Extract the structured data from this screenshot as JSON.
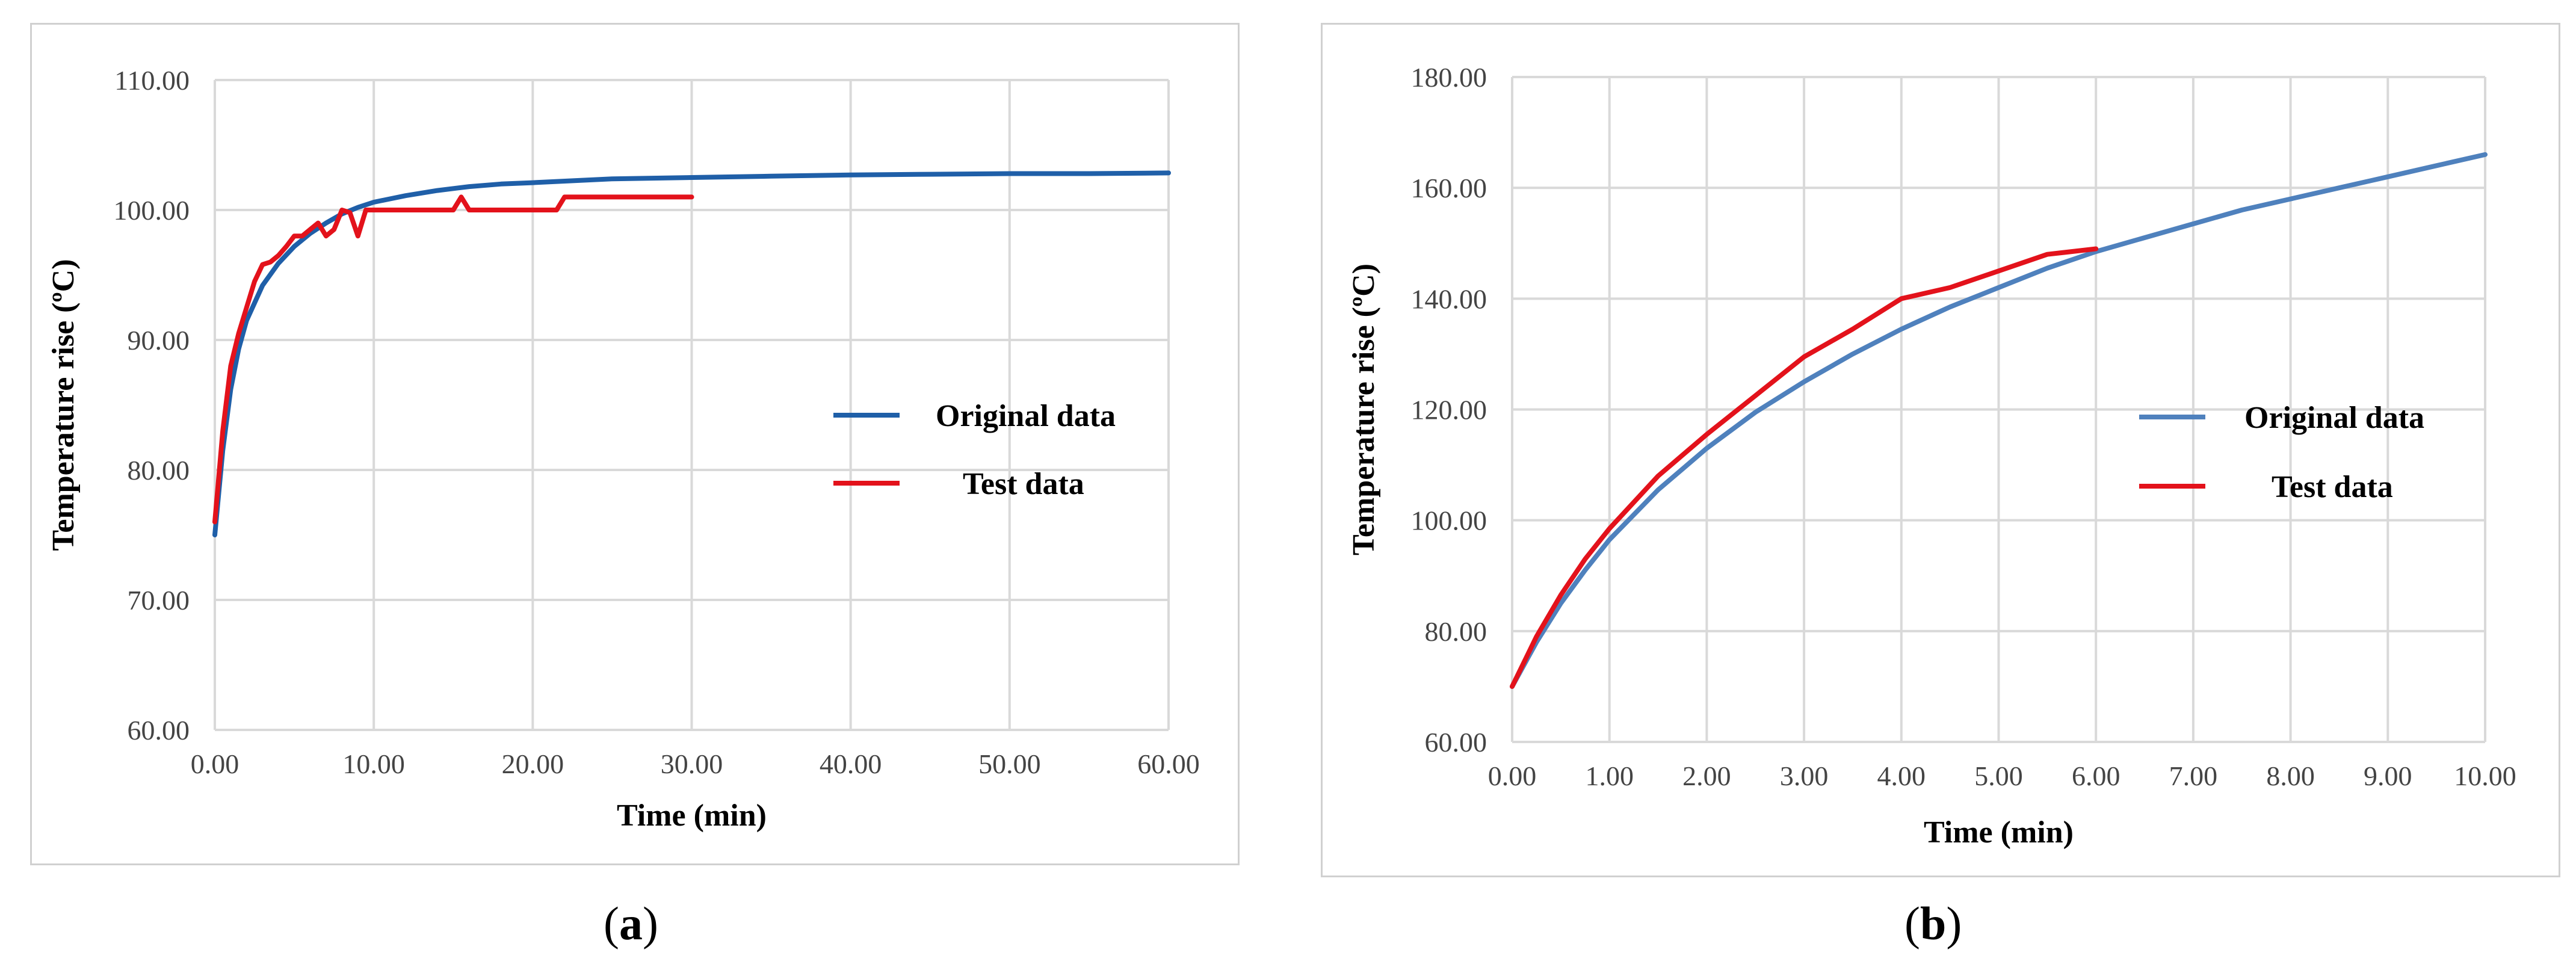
{
  "captions": {
    "a": "a",
    "b": "b"
  },
  "chart_data": [
    {
      "id": "a",
      "type": "line",
      "xlabel": "Time (min)",
      "ylabel": "Temperature rise (ºC)",
      "xlim": [
        0,
        60
      ],
      "ylim": [
        60,
        110
      ],
      "xticks": [
        0,
        10,
        20,
        30,
        40,
        50,
        60
      ],
      "yticks": [
        60,
        70,
        80,
        90,
        100,
        110
      ],
      "tick_decimals": 2,
      "grid": true,
      "legend_position": "right",
      "series": [
        {
          "name": "Original data",
          "color": "#1f5fa8",
          "x": [
            0,
            0.5,
            1,
            1.5,
            2,
            3,
            4,
            5,
            6,
            7,
            8,
            9,
            10,
            12,
            14,
            16,
            18,
            20,
            25,
            30,
            35,
            40,
            45,
            50,
            55,
            60
          ],
          "y": [
            75,
            81.5,
            86.2,
            89.3,
            91.5,
            94.2,
            95.9,
            97.2,
            98.2,
            99,
            99.7,
            100.2,
            100.6,
            101.1,
            101.5,
            101.8,
            102,
            102.1,
            102.4,
            102.5,
            102.6,
            102.7,
            102.75,
            102.8,
            102.8,
            102.85
          ]
        },
        {
          "name": "Test data",
          "color": "#e3121b",
          "x": [
            0,
            0.5,
            1,
            1.5,
            2,
            2.5,
            3,
            3.5,
            4,
            4.5,
            5,
            5.5,
            6,
            6.5,
            7,
            7.5,
            8,
            8.5,
            9,
            9.5,
            10,
            12,
            14,
            15,
            15.5,
            16,
            18,
            20,
            21.5,
            22,
            22.5,
            25,
            30
          ],
          "y": [
            76,
            83,
            88,
            90.5,
            92.5,
            94.5,
            95.8,
            96,
            96.5,
            97.2,
            98,
            98,
            98.5,
            99,
            98,
            98.5,
            100,
            99.8,
            98,
            100,
            100,
            100,
            100,
            100,
            101,
            100,
            100,
            100,
            100,
            101,
            101,
            101,
            101
          ]
        }
      ]
    },
    {
      "id": "b",
      "type": "line",
      "xlabel": "Time (min)",
      "ylabel": "Temperature rise (ºC)",
      "xlim": [
        0,
        10
      ],
      "ylim": [
        60,
        180
      ],
      "xticks": [
        0,
        1,
        2,
        3,
        4,
        5,
        6,
        7,
        8,
        9,
        10
      ],
      "yticks": [
        60,
        80,
        100,
        120,
        140,
        160,
        180
      ],
      "tick_decimals": 2,
      "grid": true,
      "legend_position": "right",
      "series": [
        {
          "name": "Original data",
          "color": "#4f81bd",
          "x": [
            0,
            0.25,
            0.5,
            0.75,
            1,
            1.5,
            2,
            2.5,
            3,
            3.5,
            4,
            4.5,
            5,
            5.5,
            6,
            6.5,
            7,
            7.5,
            8,
            8.5,
            9,
            9.5,
            10
          ],
          "y": [
            70,
            78,
            85,
            91,
            96.5,
            105.5,
            113,
            119.5,
            125,
            130,
            134.5,
            138.5,
            142,
            145.5,
            148.5,
            151,
            153.5,
            156,
            158,
            160,
            162,
            164,
            166
          ]
        },
        {
          "name": "Test data",
          "color": "#e3121b",
          "x": [
            0,
            0.25,
            0.5,
            0.75,
            1,
            1.5,
            2,
            2.5,
            3,
            3.5,
            4,
            4.5,
            5,
            5.5,
            6
          ],
          "y": [
            70,
            79,
            86.5,
            93,
            98.5,
            108,
            115.5,
            122.5,
            129.5,
            134.5,
            140,
            142,
            145,
            148,
            149
          ]
        }
      ]
    }
  ]
}
